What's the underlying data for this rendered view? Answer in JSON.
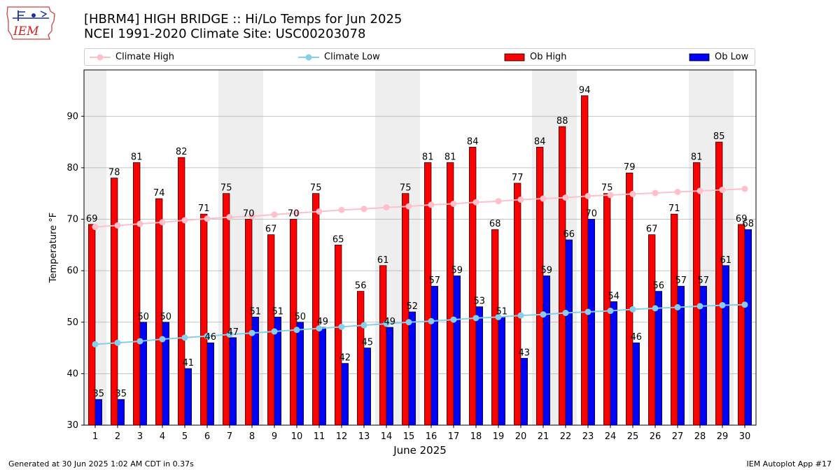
{
  "header": {
    "title_line1": "[HBRM4] HIGH BRIDGE :: Hi/Lo Temps for Jun 2025",
    "title_line2": "NCEI 1991-2020 Climate Site: USC00203078"
  },
  "logo": {
    "text": "IEM",
    "icon": "iem-iowa-logo-icon"
  },
  "legend": {
    "climate_high": "Climate High",
    "climate_low": "Climate Low",
    "ob_high": "Ob High",
    "ob_low": "Ob Low"
  },
  "footer": {
    "left": "Generated at 30 Jun 2025 1:02 AM CDT in 0.37s",
    "right": "IEM Autoplot App #17"
  },
  "colors": {
    "ob_high": "#ff0000",
    "ob_low": "#0000ff",
    "climate_high": "#ffc0cb",
    "climate_low": "#87ceeb",
    "weekend_band": "#eeeeee"
  },
  "chart_data": {
    "type": "bar",
    "xlabel": "June 2025",
    "ylabel": "Temperature °F",
    "ylim": [
      30,
      99
    ],
    "yticks": [
      30,
      40,
      50,
      60,
      70,
      80,
      90
    ],
    "grid": "horizontal",
    "legend_position": "top",
    "categories": [
      1,
      2,
      3,
      4,
      5,
      6,
      7,
      8,
      9,
      10,
      11,
      12,
      13,
      14,
      15,
      16,
      17,
      18,
      19,
      20,
      21,
      22,
      23,
      24,
      25,
      26,
      27,
      28,
      29,
      30
    ],
    "shaded_days": [
      1,
      7,
      8,
      14,
      15,
      21,
      22,
      28,
      29
    ],
    "series": [
      {
        "name": "Ob High",
        "kind": "bar",
        "values": [
          69,
          78,
          81,
          74,
          82,
          71,
          75,
          70,
          67,
          70,
          75,
          65,
          56,
          61,
          75,
          81,
          81,
          84,
          68,
          77,
          84,
          88,
          94,
          75,
          79,
          67,
          71,
          81,
          85,
          69
        ]
      },
      {
        "name": "Ob Low",
        "kind": "bar",
        "values": [
          35,
          35,
          50,
          50,
          41,
          46,
          47,
          51,
          51,
          50,
          49,
          42,
          45,
          49,
          52,
          57,
          59,
          53,
          51,
          43,
          59,
          66,
          70,
          54,
          46,
          56,
          57,
          57,
          61,
          68
        ]
      },
      {
        "name": "Climate High",
        "kind": "line",
        "values": [
          68.5,
          68.8,
          69.1,
          69.4,
          69.8,
          70.1,
          70.4,
          70.6,
          70.9,
          71.2,
          71.5,
          71.8,
          72.0,
          72.3,
          72.5,
          72.8,
          73.0,
          73.3,
          73.5,
          73.8,
          74.0,
          74.2,
          74.5,
          74.7,
          74.9,
          75.1,
          75.3,
          75.5,
          75.7,
          75.9
        ]
      },
      {
        "name": "Climate Low",
        "kind": "line",
        "values": [
          45.7,
          46.0,
          46.3,
          46.7,
          47.0,
          47.3,
          47.6,
          47.9,
          48.2,
          48.5,
          48.8,
          49.1,
          49.4,
          49.7,
          50.0,
          50.2,
          50.5,
          50.8,
          51.0,
          51.3,
          51.5,
          51.8,
          52.0,
          52.2,
          52.5,
          52.7,
          52.9,
          53.1,
          53.3,
          53.4
        ]
      }
    ]
  }
}
